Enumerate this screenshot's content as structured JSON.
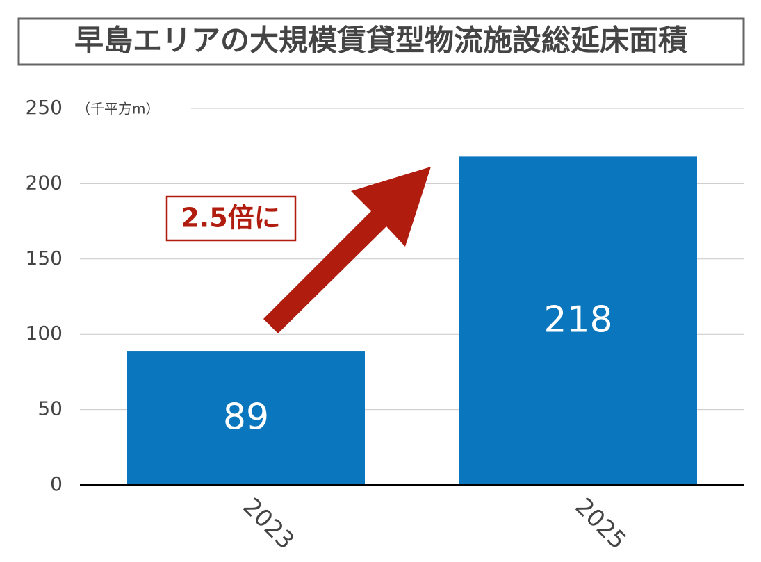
{
  "chart_data": {
    "type": "bar",
    "title": "早島エリアの大規模賃貸型物流施設総延床面積",
    "y_label": "（千平方m）",
    "categories": [
      "2023",
      "2025"
    ],
    "values": [
      89,
      218
    ],
    "color": "#0a76bd",
    "ylim": [
      0,
      250
    ],
    "yticks": [
      0,
      50,
      100,
      150,
      200,
      250
    ],
    "grid": true,
    "annotation": "2.5倍に"
  }
}
